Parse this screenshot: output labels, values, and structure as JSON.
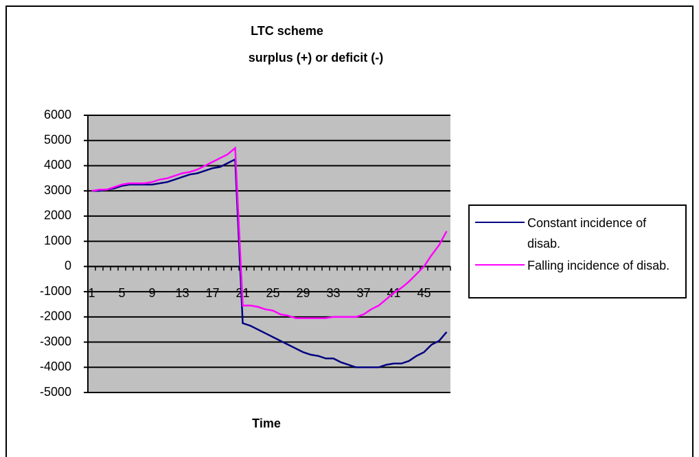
{
  "chart_data": {
    "type": "line",
    "title": "LTC scheme",
    "subtitle": "surplus (+) or deficit (-)",
    "x_label": "Time",
    "categories": [
      1,
      null,
      null,
      null,
      5,
      null,
      null,
      null,
      9,
      null,
      null,
      null,
      13,
      null,
      null,
      null,
      17,
      null,
      null,
      null,
      21,
      null,
      null,
      null,
      25,
      null,
      null,
      null,
      29,
      null,
      null,
      null,
      33,
      null,
      null,
      null,
      37,
      null,
      null,
      null,
      41,
      null,
      null,
      null,
      45,
      null,
      null,
      null
    ],
    "series": [
      {
        "name": "Constant incidence of disab.",
        "color": "#000080",
        "values": [
          3000,
          3000,
          3050,
          3100,
          3200,
          3250,
          3250,
          3250,
          3250,
          3300,
          3350,
          3450,
          3550,
          3650,
          3700,
          3800,
          3900,
          3950,
          4100,
          4250,
          -2250,
          -2350,
          -2500,
          -2650,
          -2800,
          -2950,
          -3100,
          -3250,
          -3400,
          -3500,
          -3550,
          -3650,
          -3650,
          -3800,
          -3900,
          -4000,
          -4000,
          -4000,
          -4000,
          -3900,
          -3850,
          -3850,
          -3750,
          -3550,
          -3400,
          -3100,
          -2950,
          -2600
        ]
      },
      {
        "name": "Falling incidence of disab.",
        "color": "#ff00ff",
        "values": [
          3000,
          3050,
          3050,
          3150,
          3250,
          3300,
          3300,
          3300,
          3350,
          3450,
          3500,
          3600,
          3700,
          3750,
          3850,
          4000,
          4150,
          4300,
          4450,
          4700,
          -1550,
          -1550,
          -1600,
          -1700,
          -1750,
          -1900,
          -1950,
          -2050,
          -2050,
          -2050,
          -2050,
          -2050,
          -2000,
          -2000,
          -2000,
          -2000,
          -1900,
          -1700,
          -1550,
          -1300,
          -1050,
          -850,
          -600,
          -300,
          0,
          450,
          850,
          1400
        ]
      }
    ],
    "ylim": [
      -5000,
      6000
    ],
    "yticks": [
      -5000,
      -4000,
      -3000,
      -2000,
      -1000,
      0,
      1000,
      2000,
      3000,
      4000,
      5000,
      6000
    ],
    "grid": true,
    "legend": "right",
    "plot_background": "#c0c0c0"
  }
}
